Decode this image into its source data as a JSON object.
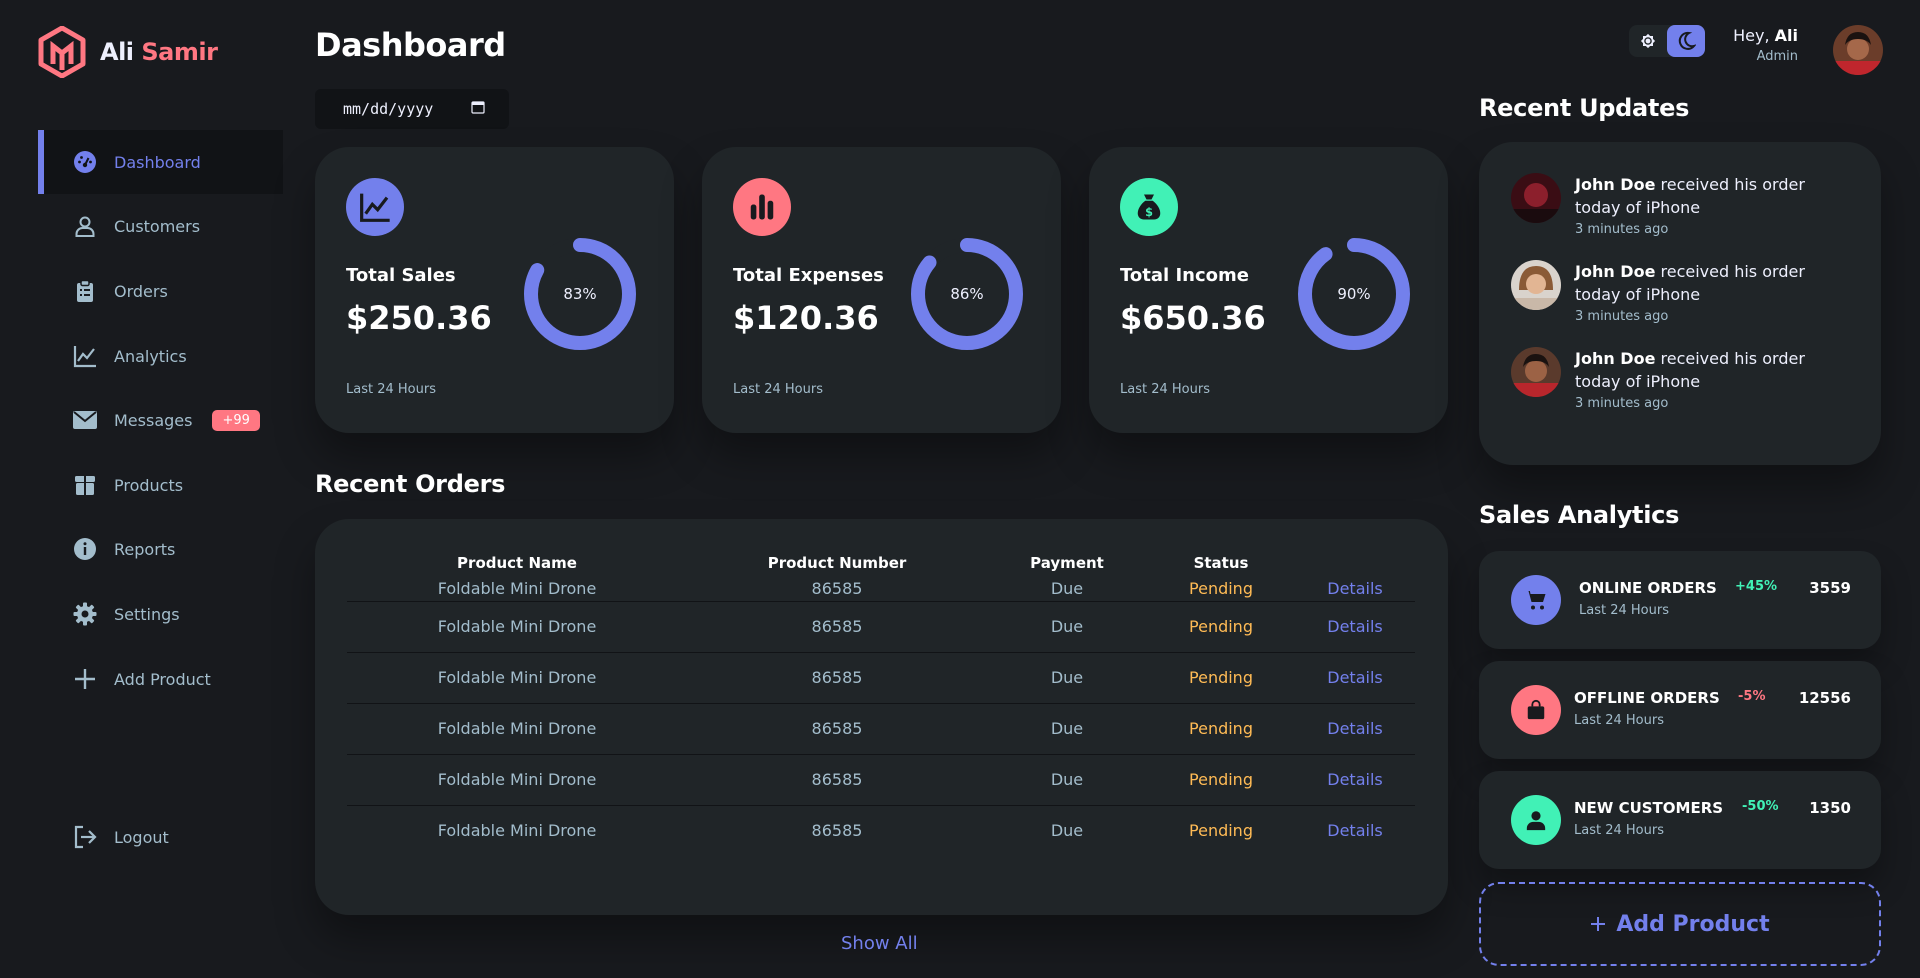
{
  "brand": {
    "first": "Ali",
    "last": "Samir"
  },
  "colors": {
    "primary": "#7380ec",
    "danger": "#ff7782",
    "success": "#41f1b6",
    "warning": "#ffbb55",
    "card": "#202528",
    "background": "#181a1e"
  },
  "sidebar": {
    "items": [
      {
        "label": "Dashboard",
        "icon": "dashboard-icon",
        "active": true
      },
      {
        "label": "Customers",
        "icon": "person-icon"
      },
      {
        "label": "Orders",
        "icon": "clipboard-icon"
      },
      {
        "label": "Analytics",
        "icon": "line-chart-icon"
      },
      {
        "label": "Messages",
        "icon": "mail-icon",
        "badge": "+99"
      },
      {
        "label": "Products",
        "icon": "box-icon"
      },
      {
        "label": "Reports",
        "icon": "info-icon"
      },
      {
        "label": "Settings",
        "icon": "gear-icon"
      },
      {
        "label": "Add Product",
        "icon": "plus-icon"
      }
    ],
    "logout": "Logout"
  },
  "main": {
    "title": "Dashboard",
    "date_placeholder": "mm/dd/yyyy",
    "cards": [
      {
        "label": "Total Sales",
        "amount": "$250.36",
        "percent_label": "83%",
        "percent": 83,
        "footer": "Last 24 Hours",
        "icon": "line-chart-icon",
        "icon_color": "#7380ec"
      },
      {
        "label": "Total Expenses",
        "amount": "$120.36",
        "percent_label": "86%",
        "percent": 86,
        "footer": "Last 24 Hours",
        "icon": "bar-chart-icon",
        "icon_color": "#ff7782"
      },
      {
        "label": "Total Income",
        "amount": "$650.36",
        "percent_label": "90%",
        "percent": 90,
        "footer": "Last 24 Hours",
        "icon": "money-bag-icon",
        "icon_color": "#41f1b6"
      }
    ],
    "recent_orders": {
      "title": "Recent Orders",
      "headers": [
        "Product Name",
        "Product Number",
        "Payment",
        "Status",
        ""
      ],
      "rows": [
        {
          "name": "Foldable Mini Drone",
          "number": "86585",
          "payment": "Due",
          "status": "Pending",
          "action": "Details"
        },
        {
          "name": "Foldable Mini Drone",
          "number": "86585",
          "payment": "Due",
          "status": "Pending",
          "action": "Details"
        },
        {
          "name": "Foldable Mini Drone",
          "number": "86585",
          "payment": "Due",
          "status": "Pending",
          "action": "Details"
        },
        {
          "name": "Foldable Mini Drone",
          "number": "86585",
          "payment": "Due",
          "status": "Pending",
          "action": "Details"
        },
        {
          "name": "Foldable Mini Drone",
          "number": "86585",
          "payment": "Due",
          "status": "Pending",
          "action": "Details"
        },
        {
          "name": "Foldable Mini Drone",
          "number": "86585",
          "payment": "Due",
          "status": "Pending",
          "action": "Details"
        }
      ],
      "show_all": "Show All"
    }
  },
  "header": {
    "hey": "Hey, ",
    "user": "Ali",
    "role": "Admin",
    "theme": "dark"
  },
  "updates": {
    "title": "Recent Updates",
    "items": [
      {
        "name": "John Doe",
        "text": " received his order today of iPhone",
        "time": "3 minutes ago"
      },
      {
        "name": "John Doe",
        "text": " received his order today of iPhone",
        "time": "3 minutes ago"
      },
      {
        "name": "John Doe",
        "text": " received his order today of iPhone",
        "time": "3 minutes ago"
      }
    ]
  },
  "analytics": {
    "title": "Sales Analytics",
    "items": [
      {
        "title": "ONLINE ORDERS",
        "sub": "Last 24 Hours",
        "pct": "+45%",
        "value": "3559",
        "pct_color": "#41f1b6",
        "icon": "cart-icon",
        "icon_color": "#7380ec"
      },
      {
        "title": "OFFLINE ORDERS",
        "sub": "Last 24 Hours",
        "pct": "-5%",
        "value": "12556",
        "pct_color": "#ff7782",
        "icon": "bag-icon",
        "icon_color": "#ff7782"
      },
      {
        "title": "NEW CUSTOMERS",
        "sub": "Last 24 Hours",
        "pct": "-50%",
        "value": "1350",
        "pct_color": "#41f1b6",
        "icon": "person-icon",
        "icon_color": "#41f1b6"
      }
    ],
    "add_product": "Add Product"
  }
}
